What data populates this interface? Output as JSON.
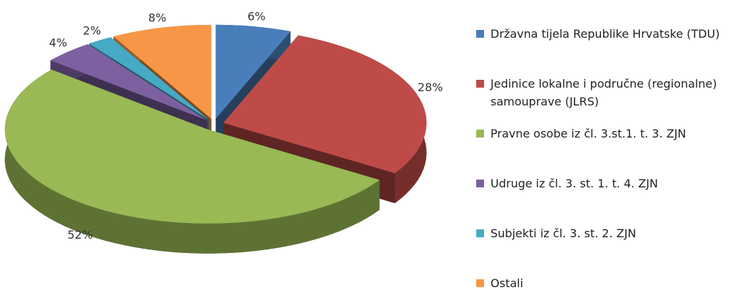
{
  "chart_data": {
    "type": "pie",
    "categories": [
      "Državna tijela Republike Hrvatske (TDU)",
      "Jedinice lokalne i područne (regionalne) samouprave (JLRS)",
      "Pravne osobe iz čl. 3.st.1. t. 3. ZJN",
      "Udruge iz čl. 3. st. 1. t. 4. ZJN",
      "Subjekti iz čl. 3. st. 2. ZJN",
      "Ostali"
    ],
    "values": [
      6,
      28,
      52,
      4,
      2,
      8
    ],
    "value_labels": [
      "6%",
      "28%",
      "52%",
      "4%",
      "2%",
      "8%"
    ],
    "colors": [
      "#4a7ebb",
      "#be4b48",
      "#98b954",
      "#7d60a0",
      "#46aac5",
      "#f79646"
    ],
    "legend": "right"
  }
}
